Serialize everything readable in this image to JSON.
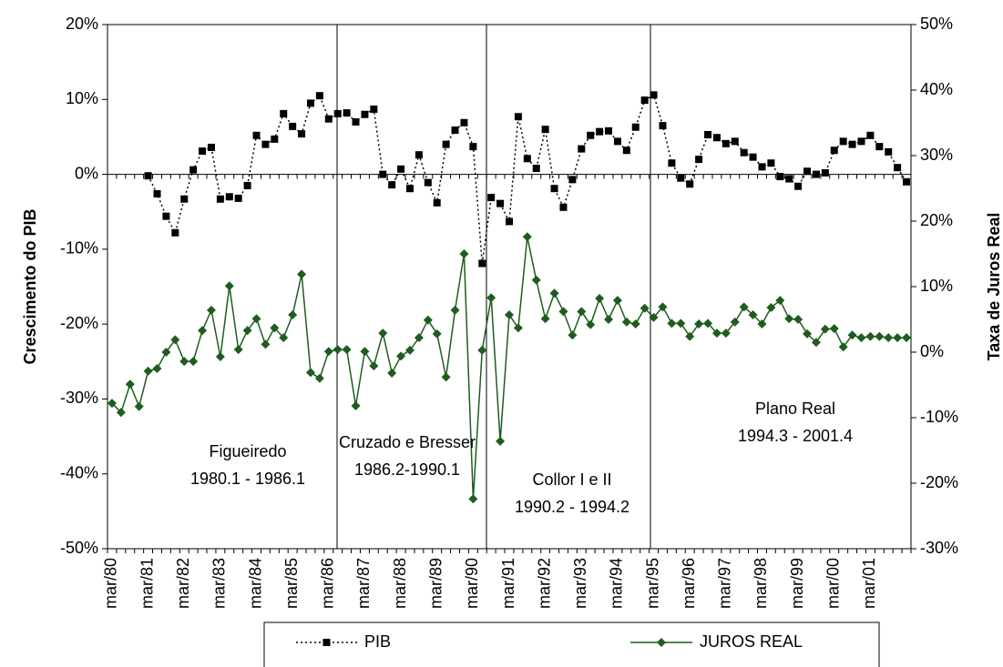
{
  "chart_data": {
    "type": "line",
    "y_label": "Crescimento do PIB",
    "y2_label": "Taxa de Juros Real",
    "categories": [
      "mar/80",
      null,
      null,
      null,
      "mar/81",
      null,
      null,
      null,
      "mar/82",
      null,
      null,
      null,
      "mar/83",
      null,
      null,
      null,
      "mar/84",
      null,
      null,
      null,
      "mar/85",
      null,
      null,
      null,
      "mar/86",
      null,
      null,
      null,
      "mar/87",
      null,
      null,
      null,
      "mar/88",
      null,
      null,
      null,
      "mar/89",
      null,
      null,
      null,
      "mar/90",
      null,
      null,
      null,
      "mar/91",
      null,
      null,
      null,
      "mar/92",
      null,
      null,
      null,
      "mar/93",
      null,
      null,
      null,
      "mar/94",
      null,
      null,
      null,
      "mar/95",
      null,
      null,
      null,
      "mar/96",
      null,
      null,
      null,
      "mar/97",
      null,
      null,
      null,
      "mar/98",
      null,
      null,
      null,
      "mar/99",
      null,
      null,
      null,
      "mar/00",
      null,
      null,
      null,
      "mar/01",
      null,
      null,
      null,
      null
    ],
    "series": [
      {
        "name": "PIB",
        "color": "#000000",
        "axis": "y",
        "values": [
          null,
          null,
          null,
          null,
          -0.2,
          -2.6,
          -5.6,
          -7.8,
          -3.3,
          0.6,
          3.1,
          3.6,
          -3.3,
          -3,
          -3.2,
          -1.5,
          5.2,
          4,
          4.7,
          8.1,
          6.4,
          5.4,
          9.5,
          10.5,
          7.4,
          8.1,
          8.2,
          7,
          8,
          8.7,
          0,
          -1.4,
          0.7,
          -1.9,
          2.6,
          -1.1,
          -3.8,
          4,
          5.9,
          6.9,
          3.7,
          -11.9,
          -3.1,
          -3.9,
          -6.3,
          7.7,
          2.1,
          0.8,
          6,
          -1.9,
          -4.4,
          -0.7,
          3.4,
          5.2,
          5.7,
          5.8,
          4.4,
          3.2,
          6.3,
          9.9,
          10.6,
          6.5,
          1.5,
          -0.5,
          -1.3,
          2,
          5.3,
          4.9,
          4.1,
          4.4,
          2.9,
          2.3,
          1,
          1.5,
          -0.3,
          -0.6,
          -1.6,
          0.4,
          0,
          0.2,
          3.2,
          4.4,
          4,
          4.4,
          5.2,
          3.7,
          3,
          0.9,
          -1
        ]
      },
      {
        "name": "JUROS REAL",
        "color": "#1f5c1f",
        "axis": "y2",
        "values": [
          -7.8,
          -9.2,
          -4.9,
          -8.3,
          -2.9,
          -2.5,
          0,
          1.9,
          -1.4,
          -1.4,
          3.3,
          6.4,
          -0.7,
          10.1,
          0.4,
          3.3,
          5.1,
          1.2,
          3.7,
          2.2,
          5.7,
          11.9,
          -3.1,
          -4,
          0.1,
          0.4,
          0.4,
          -8.2,
          0.1,
          -2.1,
          2.9,
          -3.2,
          -0.6,
          0.3,
          2.2,
          4.9,
          2.8,
          -3.8,
          6.4,
          15,
          -22.4,
          0.3,
          8.3,
          -13.6,
          5.7,
          3.7,
          17.6,
          11,
          5.1,
          9,
          6.2,
          2.6,
          6.2,
          4.2,
          8.2,
          5,
          7.9,
          4.6,
          4.3,
          6.7,
          5.3,
          6.9,
          4.4,
          4.4,
          2.4,
          4.3,
          4.4,
          2.9,
          2.9,
          4.6,
          6.9,
          5.7,
          4.3,
          6.8,
          7.9,
          5.1,
          5,
          2.8,
          1.5,
          3.5,
          3.6,
          0.8,
          2.6,
          2.2,
          2.4,
          2.4,
          2.2,
          2.2,
          2.2
        ]
      }
    ],
    "ylim": [
      -50,
      20
    ],
    "yticks": [
      {
        "value": -50,
        "label": "-50%"
      },
      {
        "value": -40,
        "label": "-40%"
      },
      {
        "value": -30,
        "label": "-30%"
      },
      {
        "value": -20,
        "label": "-20%"
      },
      {
        "value": -10,
        "label": "-10%"
      },
      {
        "value": 0,
        "label": "0%"
      },
      {
        "value": 10,
        "label": "10%"
      },
      {
        "value": 20,
        "label": "20%"
      }
    ],
    "y2lim": [
      -30,
      50
    ],
    "y2ticks": [
      {
        "value": -30,
        "label": "-30%"
      },
      {
        "value": -20,
        "label": "-20%"
      },
      {
        "value": -10,
        "label": "-10%"
      },
      {
        "value": 0,
        "label": "0%"
      },
      {
        "value": 10,
        "label": "10%"
      },
      {
        "value": 20,
        "label": "20%"
      },
      {
        "value": 30,
        "label": "30%"
      },
      {
        "value": 40,
        "label": "40%"
      },
      {
        "value": 50,
        "label": "50%"
      }
    ],
    "annotations": [
      [
        "Figueiredo",
        "1980.1 - 1986.1"
      ],
      [
        "Cruzado e Bresser",
        "1986.2-1990.1"
      ],
      [
        "Collor I e II",
        "1990.2 - 1994.2"
      ],
      [
        "Plano Real",
        "1994.3 - 2001.4"
      ]
    ],
    "legend": "bottom"
  }
}
